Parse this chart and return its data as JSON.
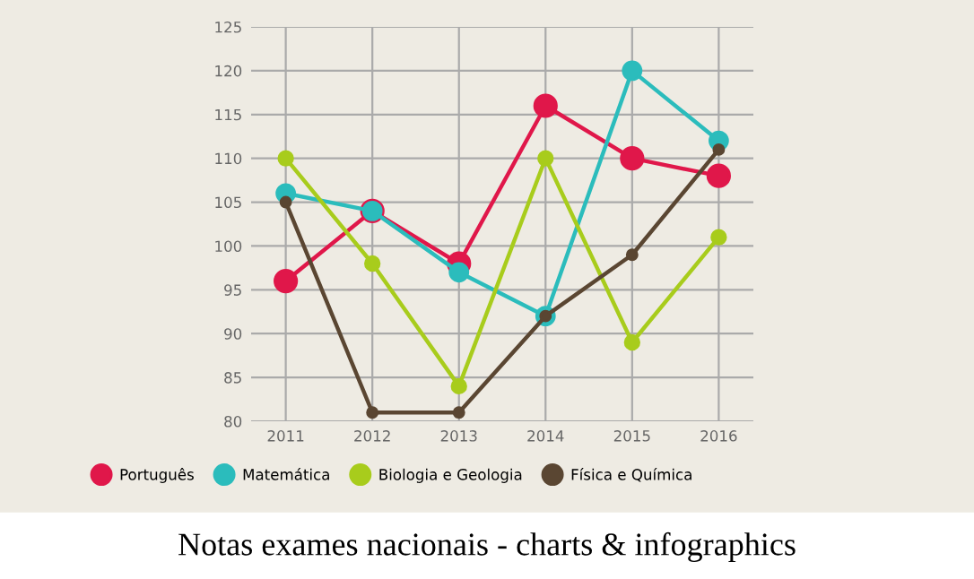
{
  "chart_data": {
    "type": "line",
    "categories": [
      "2011",
      "2012",
      "2013",
      "2014",
      "2015",
      "2016"
    ],
    "series": [
      {
        "name": "Português",
        "color": "#e0174a",
        "values": [
          96,
          104,
          98,
          116,
          110,
          108
        ]
      },
      {
        "name": "Matemática",
        "color": "#2bbcbc",
        "values": [
          106,
          104,
          97,
          92,
          120,
          112
        ]
      },
      {
        "name": "Biologia e Geologia",
        "color": "#a8cc1c",
        "values": [
          110,
          98,
          84,
          110,
          89,
          101
        ]
      },
      {
        "name": "Física e Química",
        "color": "#5a4632",
        "values": [
          105,
          81,
          81,
          92,
          99,
          111
        ]
      }
    ],
    "ylim": [
      80,
      125
    ],
    "yticks": [
      80,
      85,
      90,
      95,
      100,
      105,
      110,
      115,
      120,
      125
    ],
    "grid": true,
    "legend": "bottom",
    "marker": "circle",
    "line_style": "solid",
    "annotations": [
      "Notas exames nacionais - charts & infographics"
    ]
  }
}
